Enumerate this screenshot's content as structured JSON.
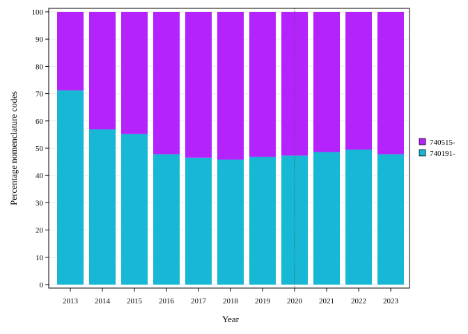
{
  "chart_data": {
    "type": "bar",
    "stacked": true,
    "title": "",
    "xlabel": "Year",
    "ylabel": "Percentage nomenclature codes",
    "categories": [
      "2013",
      "2014",
      "2015",
      "2016",
      "2017",
      "2018",
      "2019",
      "2020",
      "2021",
      "2022",
      "2023"
    ],
    "ylim": [
      0,
      100
    ],
    "yticks": [
      0,
      10,
      20,
      30,
      40,
      50,
      60,
      70,
      80,
      90,
      100
    ],
    "series": [
      {
        "name": "740191-",
        "color": "#17b8d6",
        "values": [
          71.2,
          56.9,
          55.2,
          47.8,
          46.5,
          45.8,
          46.8,
          47.3,
          48.6,
          49.5,
          47.8
        ]
      },
      {
        "name": "740515-",
        "color": "#b423fb",
        "values": [
          28.8,
          43.1,
          44.8,
          52.2,
          53.5,
          54.2,
          53.2,
          52.7,
          51.4,
          50.5,
          52.2
        ]
      }
    ],
    "reference_line": {
      "x": "2020",
      "style": "dotted"
    },
    "legend": {
      "position": "right",
      "order": [
        "740515-",
        "740191-"
      ]
    },
    "grid": true
  }
}
